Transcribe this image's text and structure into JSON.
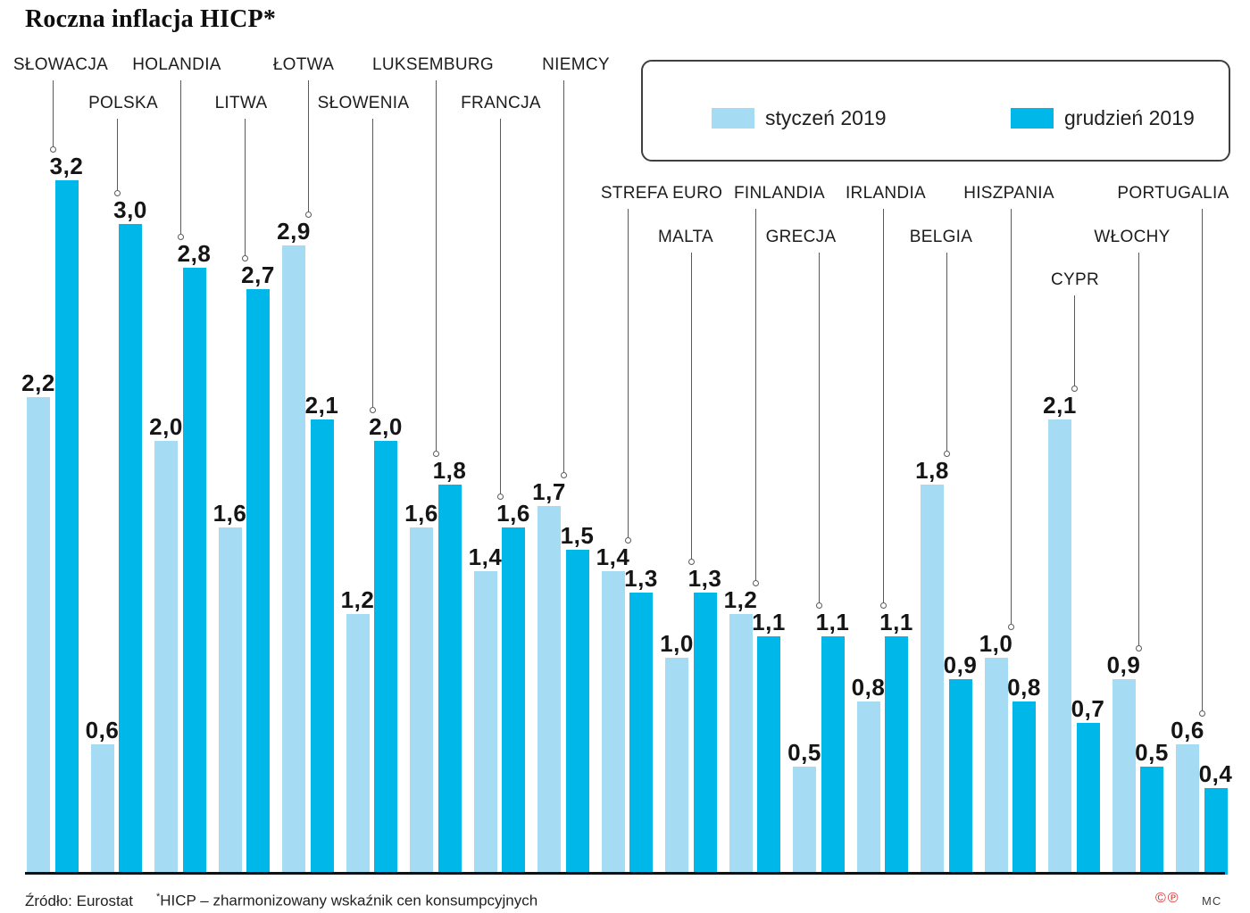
{
  "title": "Roczna inflacja HICP*",
  "legend": {
    "jan_label": "styczeń 2019",
    "dec_label": "grudzień 2019"
  },
  "colors": {
    "jan": "#A5DCF4",
    "dec": "#00B7E9",
    "baseline": "#111111",
    "leader_line": "#5a5a5a",
    "copyright_red": "#e02d2d"
  },
  "footer": {
    "source": "Źródło: Eurostat",
    "note_asterisk": "*",
    "note": "HICP – zharmonizowany wskaźnik cen konsumpcyjnych",
    "copyright_marks": "©℗",
    "initials": "MC"
  },
  "chart_data": {
    "type": "bar",
    "title": "Roczna inflacja HICP*",
    "categories": [
      "SŁOWACJA",
      "POLSKA",
      "HOLANDIA",
      "LITWA",
      "ŁOTWA",
      "SŁOWENIA",
      "LUKSEMBURG",
      "FRANCJA",
      "NIEMCY",
      "STREFA EURO",
      "MALTA",
      "FINLANDIA",
      "GRECJA",
      "IRLANDIA",
      "BELGIA",
      "HISZPANIA",
      "CYPR",
      "WŁOCHY",
      "PORTUGALIA"
    ],
    "series": [
      {
        "name": "styczeń 2019",
        "color": "#A5DCF4",
        "values": [
          2.2,
          0.6,
          2.0,
          1.6,
          2.9,
          1.2,
          1.6,
          1.4,
          1.7,
          1.4,
          1.0,
          1.2,
          0.5,
          0.8,
          1.8,
          1.0,
          2.1,
          0.9,
          0.6
        ]
      },
      {
        "name": "grudzień 2019",
        "color": "#00B7E9",
        "values": [
          3.2,
          3.0,
          2.8,
          2.7,
          2.1,
          2.0,
          1.8,
          1.6,
          1.5,
          1.3,
          1.3,
          1.1,
          1.1,
          1.1,
          0.9,
          0.8,
          0.7,
          0.5,
          0.4
        ]
      }
    ],
    "ylim": [
      0,
      3.4
    ],
    "grid": false,
    "axis_ticks": "none",
    "value_labels": "above-bars",
    "decimal_separator": ",",
    "legend_position": "top-right"
  }
}
